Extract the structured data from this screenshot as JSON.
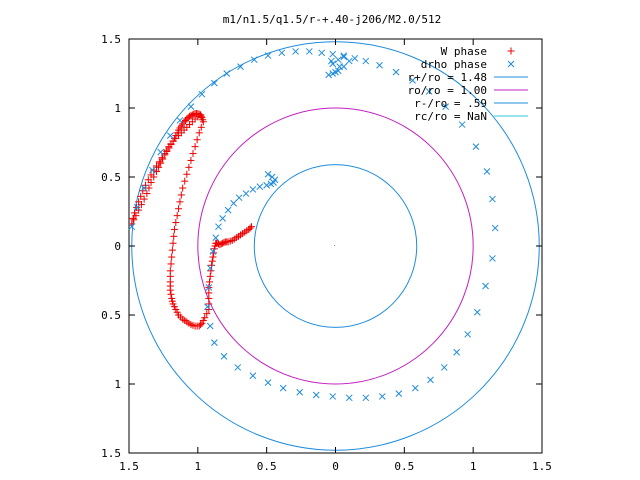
{
  "chart_data": {
    "type": "scatter",
    "title": "m1/n1.5/q1.5/r-+.40-j206/M2.0/512",
    "xlim": [
      -1.5,
      1.5
    ],
    "ylim": [
      -1.5,
      1.5
    ],
    "xticks": [
      "1.5",
      "1",
      "0.5",
      "0",
      "0.5",
      "1",
      "1.5"
    ],
    "yticks": [
      "1.5",
      "1",
      "0.5",
      "0",
      "0.5",
      "1",
      "1.5"
    ],
    "xtick_values": [
      -1.5,
      -1,
      -0.5,
      0,
      0.5,
      1,
      1.5
    ],
    "ytick_values": [
      1.5,
      1,
      0.5,
      0,
      -0.5,
      -1,
      -1.5
    ],
    "grid": false,
    "legend_position": "top-right",
    "colors": {
      "w": "#ee0000",
      "drho": "#1e8cdc",
      "r_plus": "#1e8cdc",
      "ro": "#c020c0",
      "r_minus": "#1e8cdc",
      "rc": "#30c8d8"
    },
    "circles": [
      {
        "label": "r+/ro = 1.48",
        "r": 1.48,
        "color": "#1e8cdc"
      },
      {
        "label": "ro/ro = 1.00",
        "r": 1.0,
        "color": "#c020c0"
      },
      {
        "label": "r-/ro = .59",
        "r": 0.59,
        "color": "#1e8cdc"
      },
      {
        "label": "rc/ro = NaN",
        "r": null,
        "color": "#30c8d8"
      }
    ],
    "series": [
      {
        "name": "W phase",
        "marker": "+",
        "color": "#ee0000",
        "x": [
          -0.98,
          -1.02,
          -1.06,
          -1.1,
          -1.14,
          -1.18,
          -1.21,
          -1.24,
          -1.28,
          -1.32,
          -1.36,
          -1.4,
          -1.43,
          -1.46,
          -1.48,
          -1.45,
          -1.41,
          -1.37,
          -1.34,
          -1.3,
          -1.27,
          -1.24,
          -1.21,
          -1.18,
          -1.16,
          -1.14,
          -1.12,
          -1.1,
          -1.08,
          -1.06,
          -1.04,
          -1.02,
          -1.0,
          -0.98,
          -0.97,
          -0.96,
          -0.99,
          -1.02,
          -1.05,
          -1.08,
          -1.11,
          -1.13,
          -1.15,
          -1.17,
          -1.18,
          -1.19,
          -1.2,
          -1.2,
          -1.2,
          -1.19,
          -1.18,
          -1.16,
          -1.14,
          -1.11,
          -1.08,
          -1.05,
          -1.02,
          -0.99,
          -0.97,
          -0.95,
          -0.92,
          -0.92,
          -0.92,
          -0.91,
          -0.9,
          -0.89,
          -0.88,
          -0.87,
          -0.86,
          -0.84,
          -0.82,
          -0.8,
          -0.78,
          -0.75,
          -0.72,
          -0.69,
          -0.66,
          -0.63,
          -0.61
        ],
        "y": [
          0.95,
          0.92,
          0.88,
          0.84,
          0.8,
          0.76,
          0.72,
          0.67,
          0.61,
          0.55,
          0.48,
          0.4,
          0.32,
          0.24,
          0.16,
          0.22,
          0.3,
          0.38,
          0.46,
          0.54,
          0.6,
          0.66,
          0.71,
          0.76,
          0.8,
          0.84,
          0.87,
          0.9,
          0.92,
          0.94,
          0.95,
          0.96,
          0.96,
          0.95,
          0.93,
          0.9,
          0.82,
          0.72,
          0.62,
          0.52,
          0.42,
          0.32,
          0.22,
          0.12,
          0.02,
          -0.08,
          -0.18,
          -0.26,
          -0.32,
          -0.38,
          -0.42,
          -0.46,
          -0.5,
          -0.53,
          -0.55,
          -0.57,
          -0.58,
          -0.58,
          -0.56,
          -0.52,
          -0.46,
          -0.38,
          -0.3,
          -0.22,
          -0.14,
          -0.08,
          -0.02,
          0.02,
          0.02,
          0.01,
          0.02,
          0.03,
          0.03,
          0.04,
          0.06,
          0.08,
          0.1,
          0.12,
          0.14
        ]
      },
      {
        "name": "drho phase",
        "marker": "x",
        "color": "#1e8cdc",
        "x": [
          -1.48,
          -1.44,
          -1.39,
          -1.33,
          -1.27,
          -1.2,
          -1.13,
          -1.05,
          -0.97,
          -0.88,
          -0.79,
          -0.69,
          -0.59,
          -0.49,
          -0.39,
          -0.29,
          -0.19,
          -0.1,
          -0.02,
          0.06,
          0.1,
          0.06,
          0.02,
          -0.02,
          -0.05,
          0.0,
          0.03,
          -0.02,
          -0.03,
          0.02,
          0.06,
          0.14,
          0.22,
          0.32,
          0.44,
          0.56,
          0.68,
          0.8,
          0.92,
          1.02,
          1.1,
          1.14,
          1.16,
          1.14,
          1.09,
          1.03,
          0.96,
          0.88,
          0.79,
          0.69,
          0.58,
          0.46,
          0.34,
          0.22,
          0.1,
          -0.02,
          -0.14,
          -0.26,
          -0.38,
          -0.49,
          -0.6,
          -0.71,
          -0.81,
          -0.88,
          -0.91,
          -0.93,
          -0.92,
          -0.91,
          -0.89,
          -0.87,
          -0.85,
          -0.82,
          -0.78,
          -0.74,
          -0.7,
          -0.65,
          -0.6,
          -0.55,
          -0.5,
          -0.47,
          -0.45,
          -0.44,
          -0.46,
          -0.49
        ],
        "y": [
          0.14,
          0.28,
          0.42,
          0.55,
          0.68,
          0.8,
          0.91,
          1.01,
          1.1,
          1.18,
          1.25,
          1.3,
          1.35,
          1.38,
          1.4,
          1.41,
          1.41,
          1.4,
          1.39,
          1.38,
          1.34,
          1.3,
          1.27,
          1.25,
          1.24,
          1.26,
          1.3,
          1.32,
          1.34,
          1.35,
          1.37,
          1.36,
          1.34,
          1.31,
          1.26,
          1.2,
          1.12,
          1.01,
          0.88,
          0.72,
          0.54,
          0.34,
          0.13,
          -0.09,
          -0.29,
          -0.48,
          -0.64,
          -0.77,
          -0.88,
          -0.97,
          -1.03,
          -1.07,
          -1.09,
          -1.1,
          -1.1,
          -1.09,
          -1.08,
          -1.06,
          -1.03,
          -0.99,
          -0.94,
          -0.88,
          -0.8,
          -0.7,
          -0.58,
          -0.44,
          -0.3,
          -0.16,
          -0.04,
          0.06,
          0.14,
          0.2,
          0.26,
          0.31,
          0.35,
          0.38,
          0.41,
          0.43,
          0.44,
          0.45,
          0.46,
          0.48,
          0.5,
          0.52
        ]
      }
    ]
  }
}
